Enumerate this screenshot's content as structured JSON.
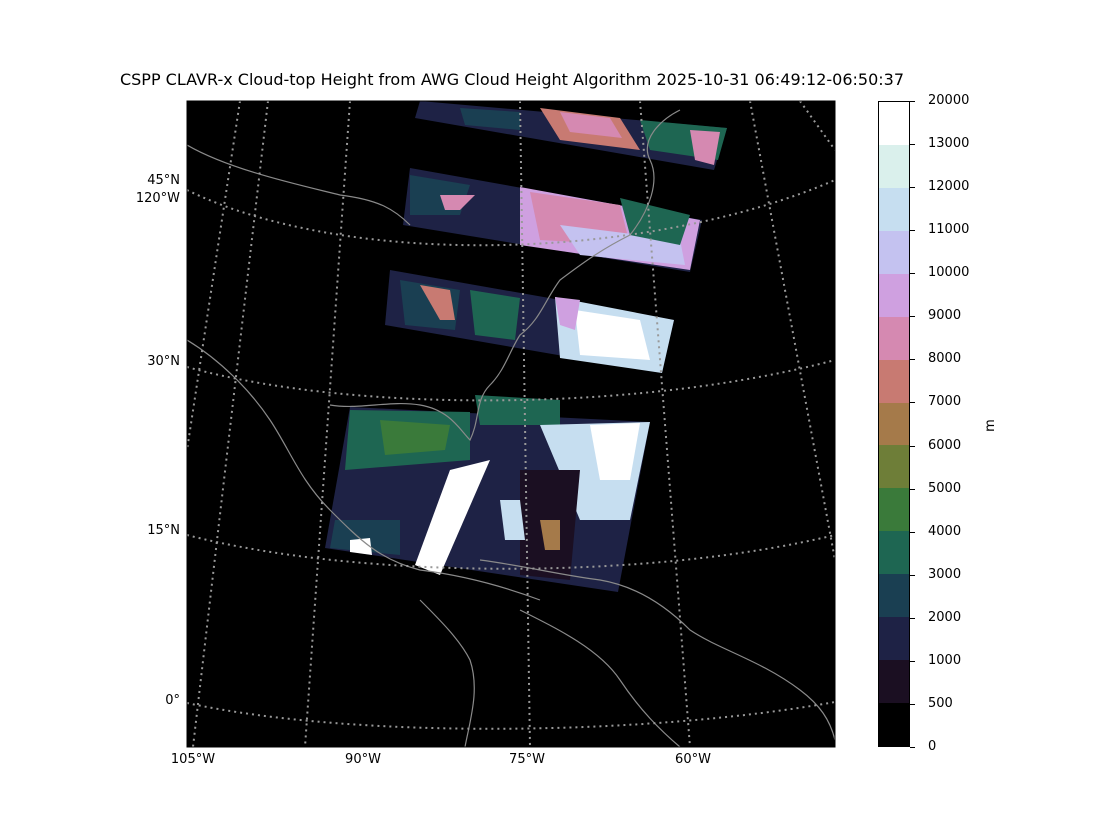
{
  "title": "CSPP CLAVR-x Cloud-top Height from AWG Cloud Height Algorithm 2025-10-31 06:49:12-06:50:37",
  "lat_labels": [
    "45°N",
    "120°W",
    "30°N",
    "15°N",
    "0°"
  ],
  "lon_labels": [
    "105°W",
    "90°W",
    "75°W",
    "60°W"
  ],
  "colorbar": {
    "unit": "m",
    "ticks": [
      "0",
      "500",
      "1000",
      "2000",
      "3000",
      "4000",
      "5000",
      "6000",
      "7000",
      "8000",
      "9000",
      "10000",
      "11000",
      "12000",
      "13000",
      "20000"
    ],
    "colors": [
      "#000000",
      "#1b0f22",
      "#1e2245",
      "#1a3f52",
      "#1e6652",
      "#3a7a3a",
      "#6e7e38",
      "#a57a4a",
      "#c87a72",
      "#d589b1",
      "#cfa0e0",
      "#c4c2f0",
      "#c6def0",
      "#daf0ec",
      "#ffffff"
    ]
  }
}
